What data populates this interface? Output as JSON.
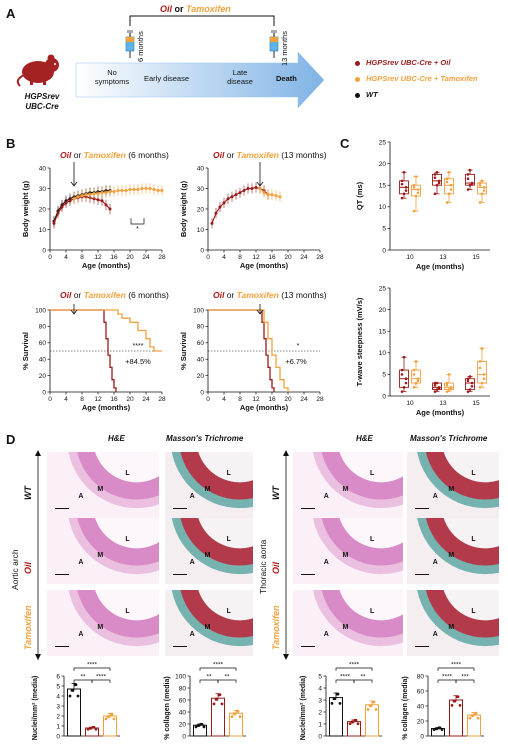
{
  "panelA": {
    "letter": "A",
    "treatment_oil": "Oil",
    "treatment_or": " or ",
    "treatment_tam": "Tamoxifen",
    "mouse_line1": "HGPSrev",
    "mouse_line2": "UBC-Cre",
    "timepoint1": "6 months",
    "timepoint2": "13 months",
    "stages": [
      "No symptoms",
      "Early disease",
      "Late disease",
      "Death"
    ],
    "legend": [
      {
        "label": "HGPSrev UBC-Cre + Oil",
        "color": "#9b1b1b"
      },
      {
        "label": "HGPSrev UBC-Cre + Tamoxifen",
        "color": "#f2a13d"
      },
      {
        "label": "WT",
        "color": "#111111"
      }
    ]
  },
  "panelB": {
    "letter": "B",
    "title_oil": "Oil",
    "title_or": " or ",
    "title_tam": "Tamoxifen",
    "title_6": " (6 months)",
    "title_13": " (13 months)",
    "bw_ylabel": "Body weight (g)",
    "surv_ylabel": "% Survival",
    "xlabel": "Age (months)",
    "x_ticks": [
      "0",
      "4",
      "8",
      "12",
      "16",
      "20",
      "24",
      "28"
    ],
    "bw_y_ticks": [
      "0",
      "10",
      "20",
      "30",
      "40"
    ],
    "surv_y_ticks": [
      "0",
      "20",
      "40",
      "60",
      "80",
      "100"
    ],
    "sig_bw": "*",
    "sig_surv6": "****",
    "pct_surv6": "+84.5%",
    "sig_surv13": "*",
    "pct_surv13": "+6.7%"
  },
  "panelC": {
    "letter": "C",
    "qt_ylabel": "QT (ms)",
    "qt_y_ticks": [
      "0",
      "5",
      "10",
      "15",
      "20",
      "25"
    ],
    "tw_ylabel": "T-wave steepness (mV/s)",
    "tw_y_ticks": [
      "0",
      "5",
      "10",
      "15",
      "20",
      "25"
    ],
    "x_ticks": [
      "10",
      "13",
      "15"
    ],
    "xlabel": "Age (months)"
  },
  "panelD": {
    "letter": "D",
    "col_he": "H&E",
    "col_mt": "Masson's Trichrome",
    "row_wt": "WT",
    "row_oil": "Oil",
    "row_tam": "Tamoxifen",
    "region1": "Aortic arch",
    "region2": "Thoracic aorta",
    "layer_a": "A",
    "layer_m": "M",
    "layer_l": "L",
    "nuclei_ylabel": "Nuclei/mm² (media)",
    "collagen_ylabel": "% collagen (media)",
    "nuclei_y_ticks": [
      "0",
      "1",
      "2",
      "3",
      "4",
      "5",
      "6"
    ],
    "nuclei2_y_ticks": [
      "0",
      "1",
      "2",
      "3",
      "4",
      "5"
    ],
    "collagen_y_ticks": [
      "0",
      "20",
      "40",
      "60",
      "80",
      "100"
    ],
    "nuclei1_sig": {
      "top": "****",
      "a": "**",
      "b": "****"
    },
    "collagen1_sig": {
      "top": "****",
      "a": "**",
      "b": "**"
    },
    "nuclei2_sig": {
      "top": "****",
      "a": "****",
      "b": "**"
    },
    "collagen2_sig": {
      "top": "****",
      "a": "****",
      "b": "***"
    }
  },
  "chart_data": [
    {
      "type": "line",
      "id": "bw6",
      "title": "Oil or Tamoxifen (6 months)",
      "xlabel": "Age (months)",
      "ylabel": "Body weight (g)",
      "xlim": [
        0,
        28
      ],
      "ylim": [
        0,
        40
      ],
      "series": [
        {
          "name": "WT",
          "color": "#111111",
          "x": [
            1,
            2,
            3,
            4,
            5,
            6,
            7,
            8,
            9,
            10,
            11,
            12,
            13,
            14,
            15
          ],
          "y": [
            14,
            19,
            22,
            24,
            25,
            26,
            26.5,
            27,
            27.5,
            28,
            28,
            28.5,
            28.5,
            29,
            29
          ]
        },
        {
          "name": "HGPSrev UBC-Cre + Oil",
          "color": "#9b1b1b",
          "x": [
            1,
            2,
            3,
            4,
            5,
            6,
            7,
            8,
            9,
            10,
            11,
            12,
            13,
            14,
            15
          ],
          "y": [
            13,
            18,
            21,
            23,
            24,
            25,
            25.5,
            26,
            26,
            25.5,
            25,
            24.5,
            24,
            22,
            20
          ]
        },
        {
          "name": "HGPSrev UBC-Cre + Tamoxifen",
          "color": "#f2a13d",
          "x": [
            6,
            7,
            8,
            9,
            10,
            11,
            12,
            13,
            14,
            15,
            16,
            17,
            18,
            19,
            20,
            21,
            22,
            23,
            24,
            25,
            26,
            27,
            28
          ],
          "y": [
            25,
            26,
            26.5,
            27,
            27,
            27.5,
            27.5,
            28,
            28,
            28.5,
            28.5,
            29,
            29,
            29,
            29.5,
            29.5,
            29.5,
            30,
            30,
            30,
            29.5,
            29,
            29
          ]
        }
      ]
    },
    {
      "type": "line",
      "id": "bw13",
      "title": "Oil or Tamoxifen (13 months)",
      "xlabel": "Age (months)",
      "ylabel": "Body weight (g)",
      "xlim": [
        0,
        28
      ],
      "ylim": [
        0,
        40
      ],
      "series": [
        {
          "name": "HGPSrev UBC-Cre + Oil",
          "color": "#9b1b1b",
          "x": [
            1,
            2,
            3,
            4,
            5,
            6,
            7,
            8,
            9,
            10,
            11,
            12,
            13,
            14,
            15
          ],
          "y": [
            13,
            18,
            21,
            23,
            25,
            26,
            27,
            28,
            29,
            30,
            30,
            30.5,
            30,
            29,
            27
          ]
        },
        {
          "name": "HGPSrev UBC-Cre + Tamoxifen",
          "color": "#f2a13d",
          "x": [
            13,
            14,
            15,
            16,
            17,
            18
          ],
          "y": [
            30,
            28,
            27,
            27,
            26.5,
            26
          ]
        }
      ]
    },
    {
      "type": "line",
      "id": "surv6",
      "title": "Oil or Tamoxifen (6 months)",
      "xlabel": "Age (months)",
      "ylabel": "% Survival",
      "xlim": [
        0,
        28
      ],
      "ylim": [
        0,
        100
      ],
      "series": [
        {
          "name": "HGPSrev UBC-Cre + Oil",
          "color": "#9b1b1b",
          "x": [
            0,
            13,
            13.5,
            14,
            14.5,
            15,
            15.5,
            16,
            16.5
          ],
          "y": [
            100,
            100,
            85,
            65,
            45,
            30,
            15,
            5,
            0
          ]
        },
        {
          "name": "HGPSrev UBC-Cre + Tamoxifen",
          "color": "#f2a13d",
          "x": [
            0,
            16,
            17,
            18,
            20,
            22,
            24,
            25,
            26,
            28
          ],
          "y": [
            100,
            100,
            95,
            90,
            85,
            75,
            65,
            55,
            50,
            50
          ]
        }
      ]
    },
    {
      "type": "line",
      "id": "surv13",
      "title": "Oil or Tamoxifen (13 months)",
      "xlabel": "Age (months)",
      "ylabel": "% Survival",
      "xlim": [
        0,
        28
      ],
      "ylim": [
        0,
        100
      ],
      "series": [
        {
          "name": "HGPSrev UBC-Cre + Oil",
          "color": "#9b1b1b",
          "x": [
            0,
            13,
            13.5,
            14,
            14.5,
            15,
            15.5,
            16,
            16.5
          ],
          "y": [
            100,
            100,
            85,
            65,
            45,
            30,
            15,
            5,
            0
          ]
        },
        {
          "name": "HGPSrev UBC-Cre + Tamoxifen",
          "color": "#f2a13d",
          "x": [
            0,
            13.5,
            14,
            15,
            16,
            17,
            18,
            19,
            20
          ],
          "y": [
            100,
            100,
            85,
            65,
            45,
            30,
            15,
            5,
            0
          ]
        }
      ]
    },
    {
      "type": "box",
      "id": "qt",
      "ylabel": "QT (ms)",
      "xlabel": "Age (months)",
      "ylim": [
        0,
        25
      ],
      "categories": [
        "10",
        "13",
        "15"
      ],
      "series": [
        {
          "name": "HGPSrev UBC-Cre + Oil",
          "color": "#9b1b1b",
          "boxes": [
            [
              12,
              13,
              14.5,
              16,
              18
            ],
            [
              13,
              15,
              16,
              17.5,
              18
            ],
            [
              14,
              15,
              15.5,
              17.5,
              18.5
            ]
          ]
        },
        {
          "name": "HGPSrev UBC-Cre + Tamoxifen",
          "color": "#f2a13d",
          "boxes": [
            [
              9,
              12.5,
              14,
              15,
              17
            ],
            [
              11,
              13,
              15,
              16.5,
              18
            ],
            [
              11,
              13,
              14.5,
              15.5,
              16
            ]
          ]
        }
      ]
    },
    {
      "type": "box",
      "id": "tw",
      "ylabel": "T-wave steepness (mV/s)",
      "xlabel": "Age (months)",
      "ylim": [
        0,
        25
      ],
      "categories": [
        "10",
        "13",
        "15"
      ],
      "series": [
        {
          "name": "HGPSrev UBC-Cre + Oil",
          "color": "#9b1b1b",
          "boxes": [
            [
              1,
              2,
              4,
              6,
              9
            ],
            [
              1,
              1.5,
              2,
              3,
              3
            ],
            [
              1,
              1.5,
              3,
              4,
              4.5
            ]
          ]
        },
        {
          "name": "HGPSrev UBC-Cre + Tamoxifen",
          "color": "#f2a13d",
          "boxes": [
            [
              2,
              3,
              4,
              6,
              8
            ],
            [
              1,
              1.5,
              2,
              3,
              5
            ],
            [
              2,
              3,
              5,
              8,
              11
            ]
          ]
        }
      ]
    },
    {
      "type": "bar",
      "id": "nuclei1",
      "ylabel": "Nuclei/mm² (media)",
      "ylim": [
        0,
        6
      ],
      "categories": [
        "WT",
        "Oil",
        "Tamoxifen"
      ],
      "values": [
        4.7,
        0.8,
        2.0
      ],
      "colors": [
        "#111111",
        "#9b1b1b",
        "#f2a13d"
      ]
    },
    {
      "type": "bar",
      "id": "collagen1",
      "ylabel": "% collagen (media)",
      "ylim": [
        0,
        100
      ],
      "categories": [
        "WT",
        "Oil",
        "Tamoxifen"
      ],
      "values": [
        18,
        63,
        38
      ],
      "colors": [
        "#111111",
        "#9b1b1b",
        "#f2a13d"
      ]
    },
    {
      "type": "bar",
      "id": "nuclei2",
      "ylabel": "Nuclei/mm² (media)",
      "ylim": [
        0,
        5
      ],
      "categories": [
        "WT",
        "Oil",
        "Tamoxifen"
      ],
      "values": [
        3.2,
        1.2,
        2.6
      ],
      "colors": [
        "#111111",
        "#9b1b1b",
        "#f2a13d"
      ]
    },
    {
      "type": "bar",
      "id": "collagen2",
      "ylabel": "% collagen (media)",
      "ylim": [
        0,
        80
      ],
      "categories": [
        "WT",
        "Oil",
        "Tamoxifen"
      ],
      "values": [
        10,
        48,
        28
      ],
      "colors": [
        "#111111",
        "#9b1b1b",
        "#f2a13d"
      ]
    }
  ]
}
